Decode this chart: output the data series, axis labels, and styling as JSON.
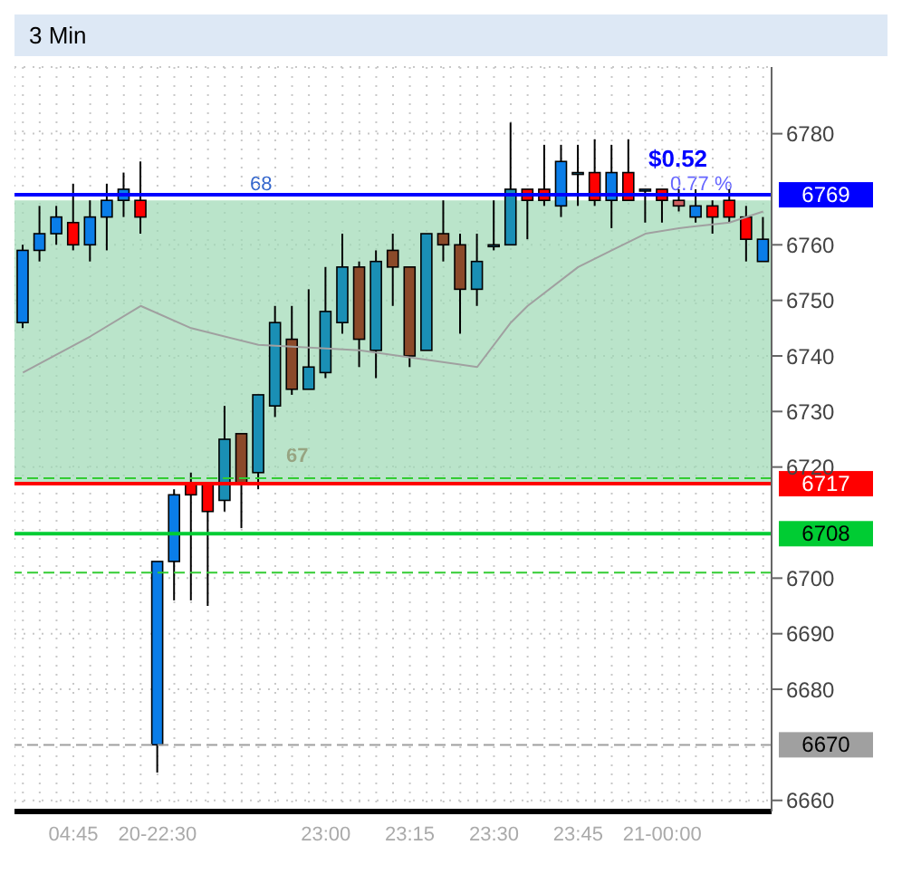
{
  "chart_data": {
    "type": "candlestick",
    "title": "3 Min",
    "categories": [
      null,
      null,
      null,
      "04:45",
      null,
      null,
      null,
      null,
      "20-22:30",
      null,
      null,
      null,
      null,
      null,
      null,
      null,
      null,
      null,
      "23:00",
      null,
      null,
      null,
      null,
      "23:15",
      null,
      null,
      null,
      null,
      "23:30",
      null,
      null,
      null,
      null,
      "23:45",
      null,
      null,
      null,
      null,
      "21-00:00",
      null,
      null,
      null,
      null,
      null,
      null
    ],
    "ohlc": [
      [
        6746,
        6760,
        6745,
        6759
      ],
      [
        6759,
        6767,
        6757,
        6762
      ],
      [
        6762,
        6767,
        6760,
        6765
      ],
      [
        6764,
        6771,
        6759,
        6760
      ],
      [
        6760,
        6768,
        6757,
        6765
      ],
      [
        6765,
        6771,
        6759,
        6768
      ],
      [
        6768,
        6773,
        6765,
        6770
      ],
      [
        6768,
        6775,
        6762,
        6765
      ],
      [
        6670,
        6703,
        6665,
        6703
      ],
      [
        6703,
        6716,
        6696,
        6715
      ],
      [
        6717,
        6719,
        6696,
        6715
      ],
      [
        6717,
        6717,
        6695,
        6712
      ],
      [
        6714,
        6731,
        6712,
        6725
      ],
      [
        6726,
        6726,
        6709,
        6717
      ],
      [
        6719,
        6733,
        6716,
        6733
      ],
      [
        6731,
        6749,
        6729,
        6746
      ],
      [
        6743,
        6749,
        6733,
        6734
      ],
      [
        6734,
        6752,
        6734,
        6738
      ],
      [
        6737,
        6756,
        6736,
        6748
      ],
      [
        6746,
        6762,
        6744,
        6756
      ],
      [
        6756,
        6757,
        6738,
        6743
      ],
      [
        6741,
        6759,
        6736,
        6757
      ],
      [
        6759,
        6762,
        6749,
        6756
      ],
      [
        6756,
        6756,
        6738,
        6740
      ],
      [
        6741,
        6762,
        6741,
        6762
      ],
      [
        6762,
        6768,
        6757,
        6760
      ],
      [
        6760,
        6762,
        6744,
        6752
      ],
      [
        6752,
        6762,
        6749,
        6757
      ],
      [
        6760,
        6768,
        6759,
        6760
      ],
      [
        6760,
        6782,
        6760,
        6770
      ],
      [
        6770,
        6770,
        6761,
        6768
      ],
      [
        6770,
        6778,
        6767,
        6768
      ],
      [
        6767,
        6778,
        6765,
        6775
      ],
      [
        6773,
        6778,
        6767,
        6773
      ],
      [
        6773,
        6779,
        6767,
        6768
      ],
      [
        6768,
        6778,
        6763,
        6773
      ],
      [
        6773,
        6779,
        6768,
        6768
      ],
      [
        6770,
        6770,
        6764,
        6770
      ],
      [
        6770,
        6770,
        6764,
        6768
      ],
      [
        6768,
        6770,
        6766,
        6767
      ],
      [
        6765,
        6770,
        6764,
        6767
      ],
      [
        6767,
        6768,
        6762,
        6765
      ],
      [
        6768,
        6770,
        6764,
        6765
      ],
      [
        6765,
        6767,
        6757,
        6761
      ],
      [
        6757,
        6765,
        6757,
        6761
      ]
    ],
    "colors": [
      "#0a7de8",
      "#0a7de8",
      "#0a7de8",
      "#ff0000",
      "#0a7de8",
      "#0a7de8",
      "#0a7de8",
      "#ff0000",
      "#0a7de8",
      "#0a7de8",
      "#ff0000",
      "#ff0000",
      "#1a8fb5",
      "#8b4a2a",
      "#1a8fb5",
      "#1a8fb5",
      "#8b4a2a",
      "#1a8fb5",
      "#1a8fb5",
      "#1a8fb5",
      "#8b4a2a",
      "#1a8fb5",
      "#8b4a2a",
      "#8b4a2a",
      "#1a8fb5",
      "#8b4a2a",
      "#8b4a2a",
      "#1a8fb5",
      "#1a8fb5",
      "#1a8fb5",
      "#ff0000",
      "#ff0000",
      "#0a7de8",
      "#1a8fb5",
      "#ff0000",
      "#0a7de8",
      "#ff0000",
      "#0a7de8",
      "#ff0000",
      "#d06060",
      "#0a7de8",
      "#ff0000",
      "#ff0000",
      "#ff0000",
      "#0a7de8"
    ],
    "series": [
      {
        "type": "line",
        "color": "#a0a0a0",
        "values": [
          6737,
          null,
          null,
          null,
          6743.5,
          null,
          null,
          6749,
          null,
          null,
          6745,
          null,
          null,
          null,
          6742,
          null,
          null,
          null,
          null,
          null,
          6741,
          null,
          null,
          null,
          null,
          null,
          null,
          6738,
          null,
          6746,
          6749,
          null,
          null,
          6756,
          null,
          6759,
          null,
          6762,
          null,
          6763,
          null,
          null,
          6764,
          null,
          6766
        ]
      }
    ],
    "ylim": [
      6658,
      6792
    ],
    "yticks": [
      6660,
      6680,
      6690,
      6700,
      6720,
      6730,
      6740,
      6750,
      6760,
      6780
    ],
    "grid": true,
    "ref_lines": [
      {
        "axis": "y",
        "value": 6769,
        "label": "6769",
        "color": "#0000ff"
      },
      {
        "axis": "y",
        "value": 6717,
        "label": "6717",
        "color": "#ff0000"
      },
      {
        "axis": "y",
        "value": 6708,
        "label": "6708",
        "color": "#00cc33"
      },
      {
        "axis": "y",
        "value": 6670,
        "label": "6670",
        "color": "#a0a0a0",
        "line_style": "dashed"
      },
      {
        "axis": "y",
        "value": 6718,
        "color": "#33cc33",
        "line_style": "dashed"
      },
      {
        "axis": "y",
        "value": 6701,
        "color": "#33cc33",
        "line_style": "dashed"
      }
    ],
    "bands": [
      {
        "axis": "y",
        "from": 6717,
        "to": 6768,
        "color": "#9dd8b4"
      }
    ],
    "annotations": [
      "68",
      "67",
      "$0.52",
      "0.77 %"
    ]
  }
}
